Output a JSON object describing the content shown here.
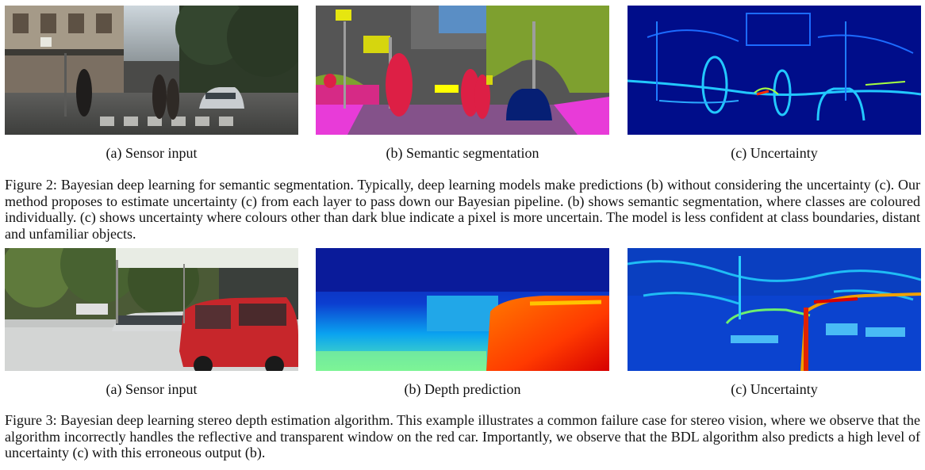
{
  "figure2": {
    "subcaptions": [
      "(a) Sensor input",
      "(b) Semantic segmentation",
      "(c) Uncertainty"
    ],
    "caption": "Figure 2: Bayesian deep learning for semantic segmentation. Typically, deep learning models make predictions (b) without considering the uncertainty (c). Our method proposes to estimate uncertainty (c) from each layer to pass down our Bayesian pipeline. (b) shows semantic segmentation, where classes are coloured individually. (c) shows uncertainty where colours other than dark blue indicate a pixel is more uncertain. The model is less confident at class boundaries, distant and unfamiliar objects."
  },
  "figure3": {
    "subcaptions": [
      "(a) Sensor input",
      "(b) Depth prediction",
      "(c) Uncertainty"
    ],
    "caption": "Figure 3: Bayesian deep learning stereo depth estimation algorithm. This example illustrates a common failure case for stereo vision, where we observe that the algorithm incorrectly handles the reflective and transparent window on the red car. Importantly, we observe that the BDL algorithm also predicts a high level of uncertainty (c) with this erroneous output (b)."
  }
}
